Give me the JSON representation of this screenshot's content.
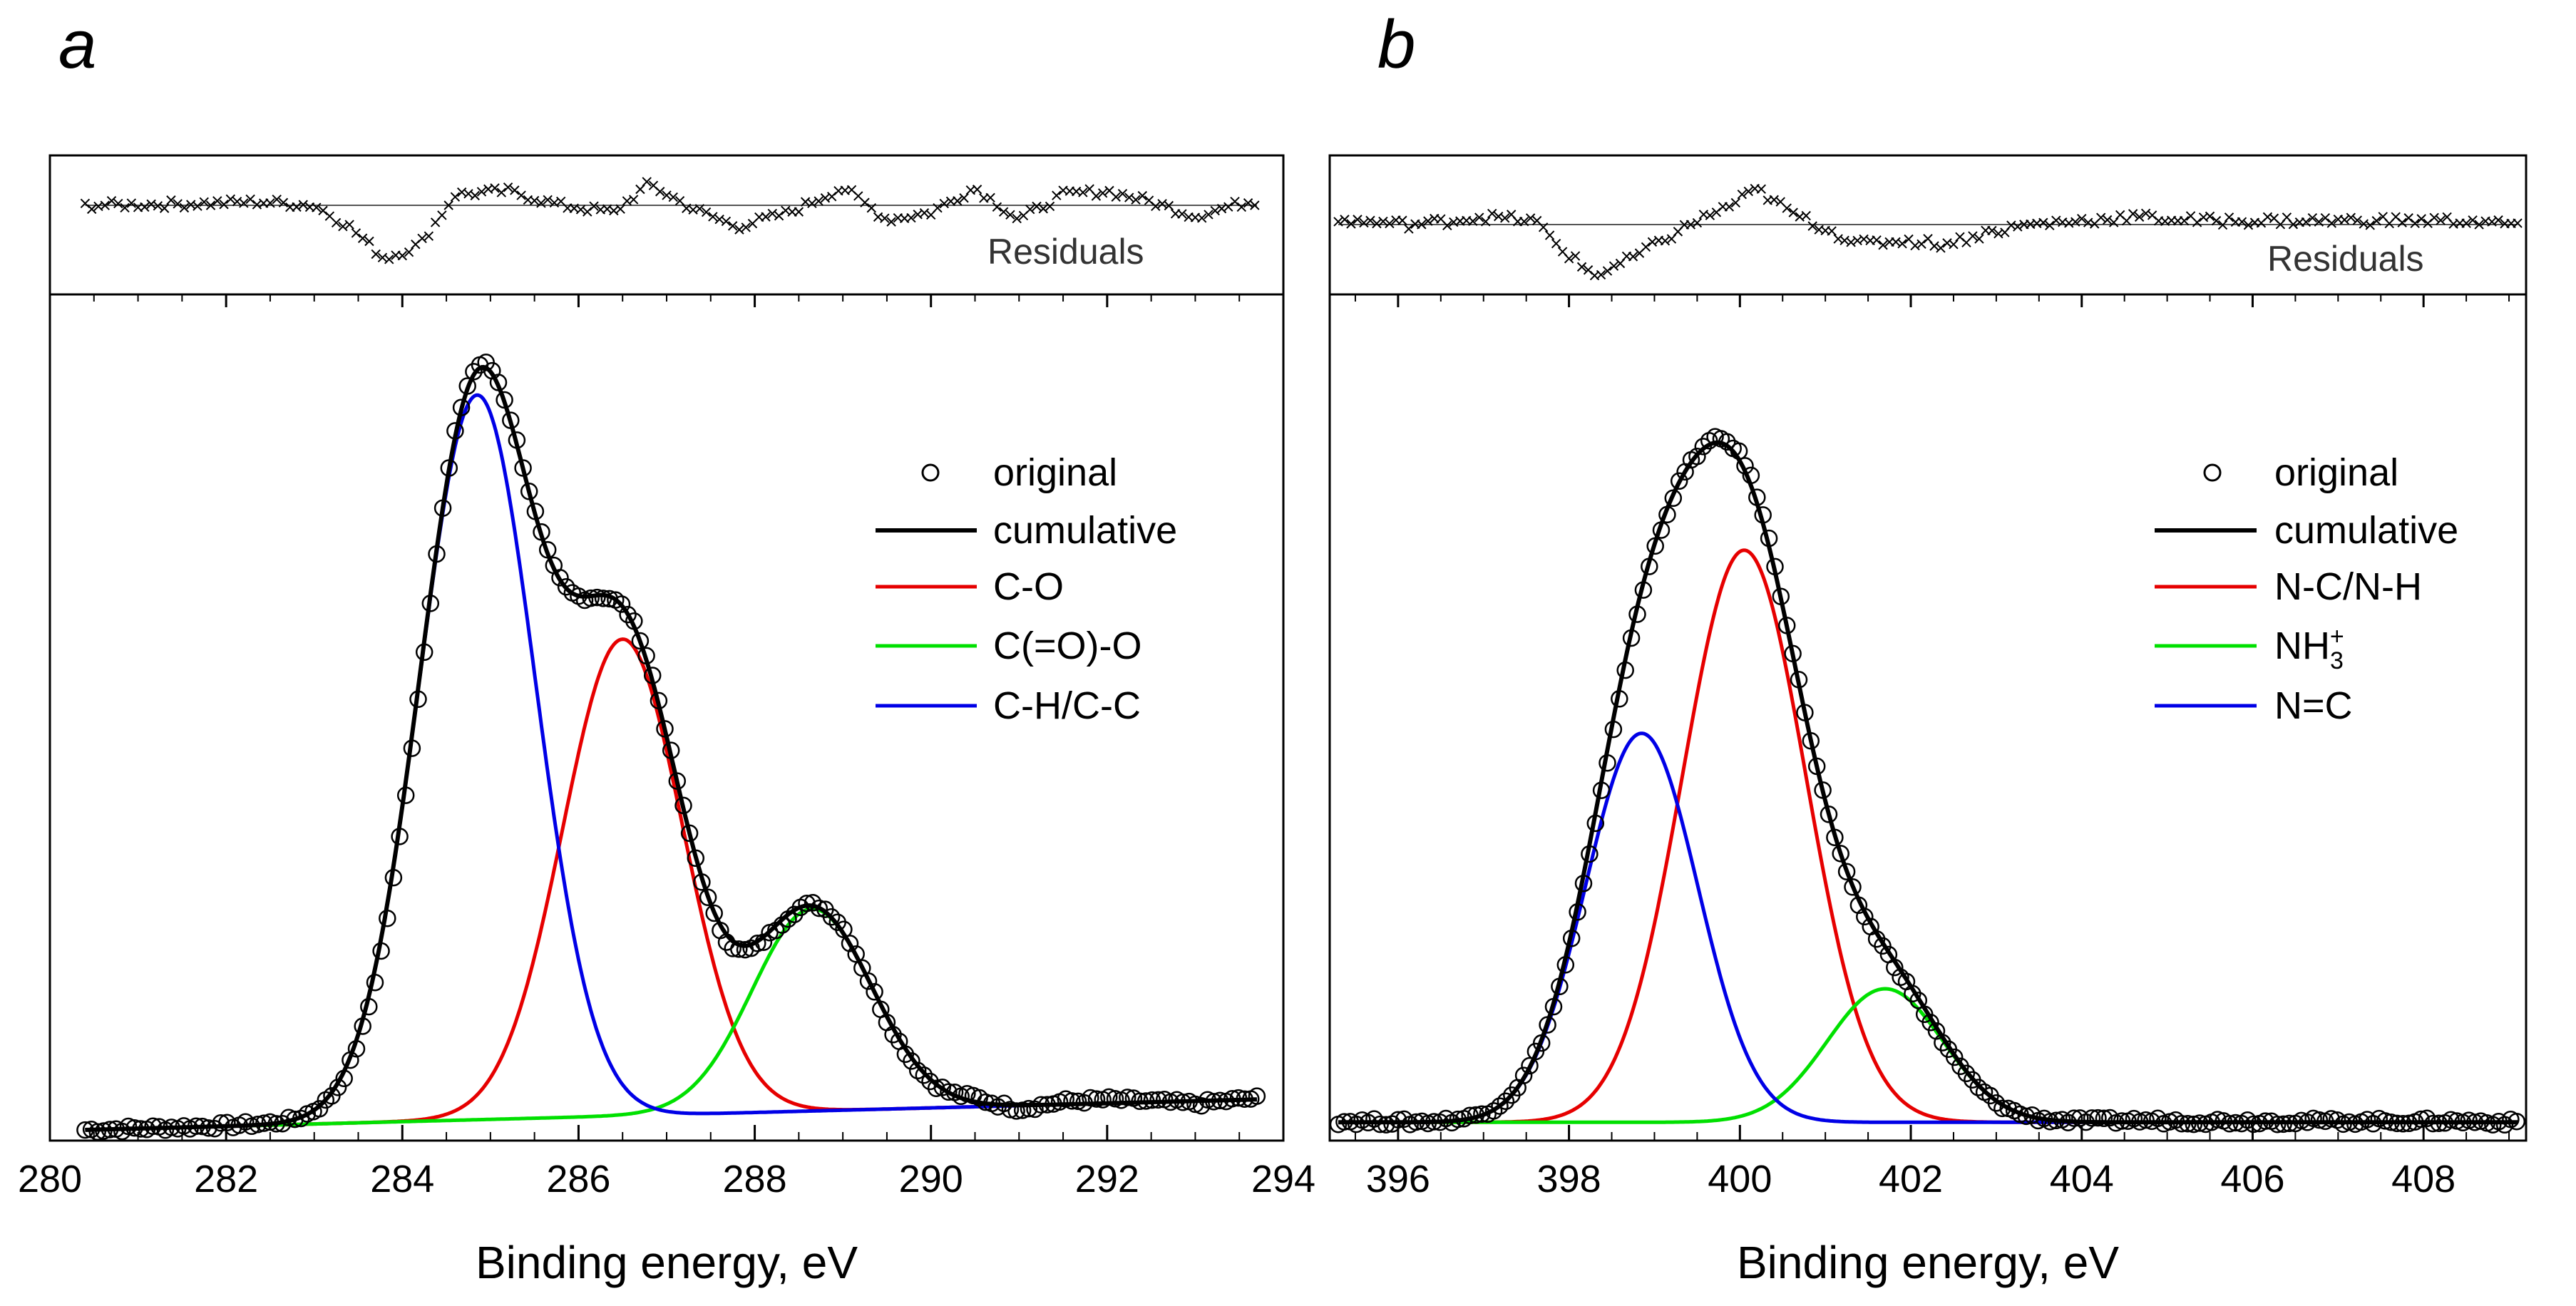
{
  "chart_data": [
    {
      "type": "line",
      "panel_label": "a",
      "xlabel": "Binding energy, eV",
      "ylabel": "",
      "xlim": [
        280,
        294
      ],
      "xticks": [
        "280",
        "282",
        "284",
        "286",
        "288",
        "290",
        "292",
        "294"
      ],
      "yticks": [],
      "residuals_label": "Residuals",
      "legend": {
        "placement": "top-right",
        "entries": [
          {
            "name": "original",
            "kind": "marker"
          },
          {
            "name": "cumulative",
            "kind": "line",
            "color": "#000000"
          },
          {
            "name": "C-O",
            "kind": "line",
            "color": "#e60000"
          },
          {
            "name": "C(=O)-O",
            "kind": "line",
            "color": "#00e000"
          },
          {
            "name": "C-H/C-C",
            "kind": "line",
            "color": "#0000e6"
          }
        ]
      },
      "baseline": {
        "x": [
          280.4,
          293.7
        ],
        "y": [
          0.0,
          0.04
        ]
      },
      "components": [
        {
          "name": "C-O",
          "color": "#e60000",
          "center": 286.5,
          "height": 0.625,
          "fwhm": 1.6
        },
        {
          "name": "C(=O)-O",
          "color": "#00e000",
          "center": 288.65,
          "height": 0.265,
          "fwhm": 1.6
        },
        {
          "name": "C-H/C-C",
          "color": "#0000e6",
          "center": 284.85,
          "height": 0.95,
          "fwhm": 1.55
        }
      ],
      "residuals": [
        {
          "x": 280.5,
          "y": 0.0
        },
        {
          "x": 281.5,
          "y": 0.02
        },
        {
          "x": 282.4,
          "y": 0.05
        },
        {
          "x": 283.0,
          "y": 0.0
        },
        {
          "x": 283.4,
          "y": -0.3
        },
        {
          "x": 283.8,
          "y": -0.75
        },
        {
          "x": 284.2,
          "y": -0.55
        },
        {
          "x": 284.6,
          "y": 0.15
        },
        {
          "x": 285.2,
          "y": 0.2
        },
        {
          "x": 285.8,
          "y": 0.0
        },
        {
          "x": 286.4,
          "y": -0.1
        },
        {
          "x": 286.8,
          "y": 0.3
        },
        {
          "x": 287.3,
          "y": -0.05
        },
        {
          "x": 287.8,
          "y": -0.3
        },
        {
          "x": 288.4,
          "y": -0.1
        },
        {
          "x": 289.0,
          "y": 0.25
        },
        {
          "x": 289.5,
          "y": -0.2
        },
        {
          "x": 290.0,
          "y": -0.1
        },
        {
          "x": 290.5,
          "y": 0.25
        },
        {
          "x": 291.0,
          "y": -0.2
        },
        {
          "x": 291.5,
          "y": 0.15
        },
        {
          "x": 292.0,
          "y": 0.2
        },
        {
          "x": 292.5,
          "y": 0.05
        },
        {
          "x": 293.0,
          "y": -0.15
        },
        {
          "x": 293.6,
          "y": 0.05
        }
      ]
    },
    {
      "type": "line",
      "panel_label": "b",
      "xlabel": "Binding energy, eV",
      "ylabel": "",
      "xlim": [
        395.2,
        409.2
      ],
      "xticks": [
        "396",
        "398",
        "400",
        "402",
        "404",
        "406",
        "408"
      ],
      "yticks": [],
      "residuals_label": "Residuals",
      "legend": {
        "placement": "top-right",
        "entries": [
          {
            "name": "original",
            "kind": "marker"
          },
          {
            "name": "cumulative",
            "kind": "line",
            "color": "#000000"
          },
          {
            "name": "N-C/N-H",
            "kind": "line",
            "color": "#e60000"
          },
          {
            "name": "NH",
            "sub": "3",
            "sup": "+",
            "kind": "line",
            "color": "#00e000"
          },
          {
            "name": "N=C",
            "kind": "line",
            "color": "#0000e6"
          }
        ]
      },
      "baseline": {
        "x": [
          395.3,
          409.1
        ],
        "y": [
          0.01,
          0.01
        ]
      },
      "components": [
        {
          "name": "N-C/N-H",
          "color": "#e60000",
          "center": 400.05,
          "height": 0.75,
          "fwhm": 1.7
        },
        {
          "name": "NH3+",
          "color": "#00e000",
          "center": 401.7,
          "height": 0.175,
          "fwhm": 1.6
        },
        {
          "name": "N=C",
          "color": "#0000e6",
          "center": 398.85,
          "height": 0.51,
          "fwhm": 1.55
        }
      ],
      "residuals": [
        {
          "x": 395.4,
          "y": 0.05
        },
        {
          "x": 396.2,
          "y": 0.0
        },
        {
          "x": 397.0,
          "y": 0.1
        },
        {
          "x": 397.6,
          "y": 0.05
        },
        {
          "x": 397.9,
          "y": -0.3
        },
        {
          "x": 398.3,
          "y": -0.65
        },
        {
          "x": 398.7,
          "y": -0.45
        },
        {
          "x": 399.1,
          "y": -0.2
        },
        {
          "x": 399.5,
          "y": 0.05
        },
        {
          "x": 399.9,
          "y": 0.25
        },
        {
          "x": 400.2,
          "y": 0.45
        },
        {
          "x": 400.6,
          "y": 0.15
        },
        {
          "x": 401.0,
          "y": -0.05
        },
        {
          "x": 401.4,
          "y": -0.25
        },
        {
          "x": 401.9,
          "y": -0.2
        },
        {
          "x": 402.4,
          "y": -0.25
        },
        {
          "x": 402.9,
          "y": -0.1
        },
        {
          "x": 403.4,
          "y": 0.0
        },
        {
          "x": 404.0,
          "y": 0.05
        },
        {
          "x": 404.6,
          "y": 0.1
        },
        {
          "x": 405.4,
          "y": 0.05
        },
        {
          "x": 406.2,
          "y": 0.05
        },
        {
          "x": 407.0,
          "y": 0.05
        },
        {
          "x": 407.8,
          "y": 0.05
        },
        {
          "x": 408.5,
          "y": 0.05
        },
        {
          "x": 409.0,
          "y": 0.0
        }
      ]
    }
  ]
}
